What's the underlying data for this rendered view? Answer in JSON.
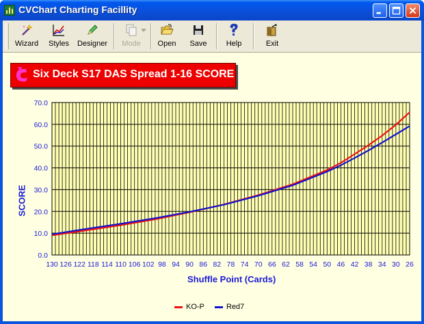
{
  "window": {
    "title": "CVChart Charting Facillity",
    "controls": [
      "minimize",
      "maximize",
      "close"
    ]
  },
  "toolbar": {
    "items": [
      {
        "id": "wizard",
        "label": "Wizard",
        "icon": "wand-icon",
        "enabled": true
      },
      {
        "id": "styles",
        "label": "Styles",
        "icon": "line-chart-icon",
        "enabled": true
      },
      {
        "id": "designer",
        "label": "Designer",
        "icon": "pencil-icon",
        "enabled": true
      },
      {
        "id": "mode",
        "label": "Mode",
        "icon": "copy-icon",
        "enabled": false
      },
      {
        "id": "open",
        "label": "Open",
        "icon": "folder-open-icon",
        "enabled": true
      },
      {
        "id": "save",
        "label": "Save",
        "icon": "floppy-disk-icon",
        "enabled": true
      },
      {
        "id": "help",
        "label": "Help",
        "icon": "help-icon",
        "enabled": true
      },
      {
        "id": "exit",
        "label": "Exit",
        "icon": "exit-door-icon",
        "enabled": true
      }
    ]
  },
  "colors": {
    "plot_background": "#ffffb4",
    "grid": "#000000",
    "axis_text": "#1a1ad8",
    "title_box": "#ee0000",
    "title_logo": "#ff33cc"
  },
  "chart_data": {
    "type": "line",
    "title": "Six Deck S17 DAS Spread 1-16 SCORE",
    "xlabel": "Shuffle Point (Cards)",
    "ylabel": "SCORE",
    "x_direction": "descending",
    "xlim": [
      130,
      26
    ],
    "ylim": [
      0,
      70
    ],
    "y_ticks": [
      "0.0",
      "10.0",
      "20.0",
      "30.0",
      "40.0",
      "50.0",
      "60.0",
      "70.0"
    ],
    "x_ticks": [
      "130",
      "126",
      "122",
      "118",
      "114",
      "110",
      "106",
      "102",
      "98",
      "94",
      "90",
      "86",
      "82",
      "78",
      "74",
      "70",
      "66",
      "62",
      "58",
      "54",
      "50",
      "46",
      "42",
      "38",
      "34",
      "30",
      "26"
    ],
    "grid": true,
    "legend_position": "bottom",
    "x": [
      130,
      120,
      110,
      100,
      90,
      80,
      70,
      60,
      50,
      46,
      42,
      38,
      34,
      30,
      26
    ],
    "series": [
      {
        "name": "KO-P",
        "color": "#ee1111",
        "values": [
          9.0,
          11.3,
          13.7,
          16.4,
          19.6,
          23.2,
          27.5,
          32.5,
          39.0,
          42.3,
          46.3,
          50.4,
          54.8,
          59.8,
          65.5
        ]
      },
      {
        "name": "Red7",
        "color": "#1212cc",
        "values": [
          9.5,
          12.0,
          14.3,
          16.9,
          19.8,
          23.1,
          27.2,
          32.0,
          38.3,
          41.2,
          44.5,
          48.0,
          51.6,
          55.4,
          59.2
        ]
      }
    ]
  }
}
